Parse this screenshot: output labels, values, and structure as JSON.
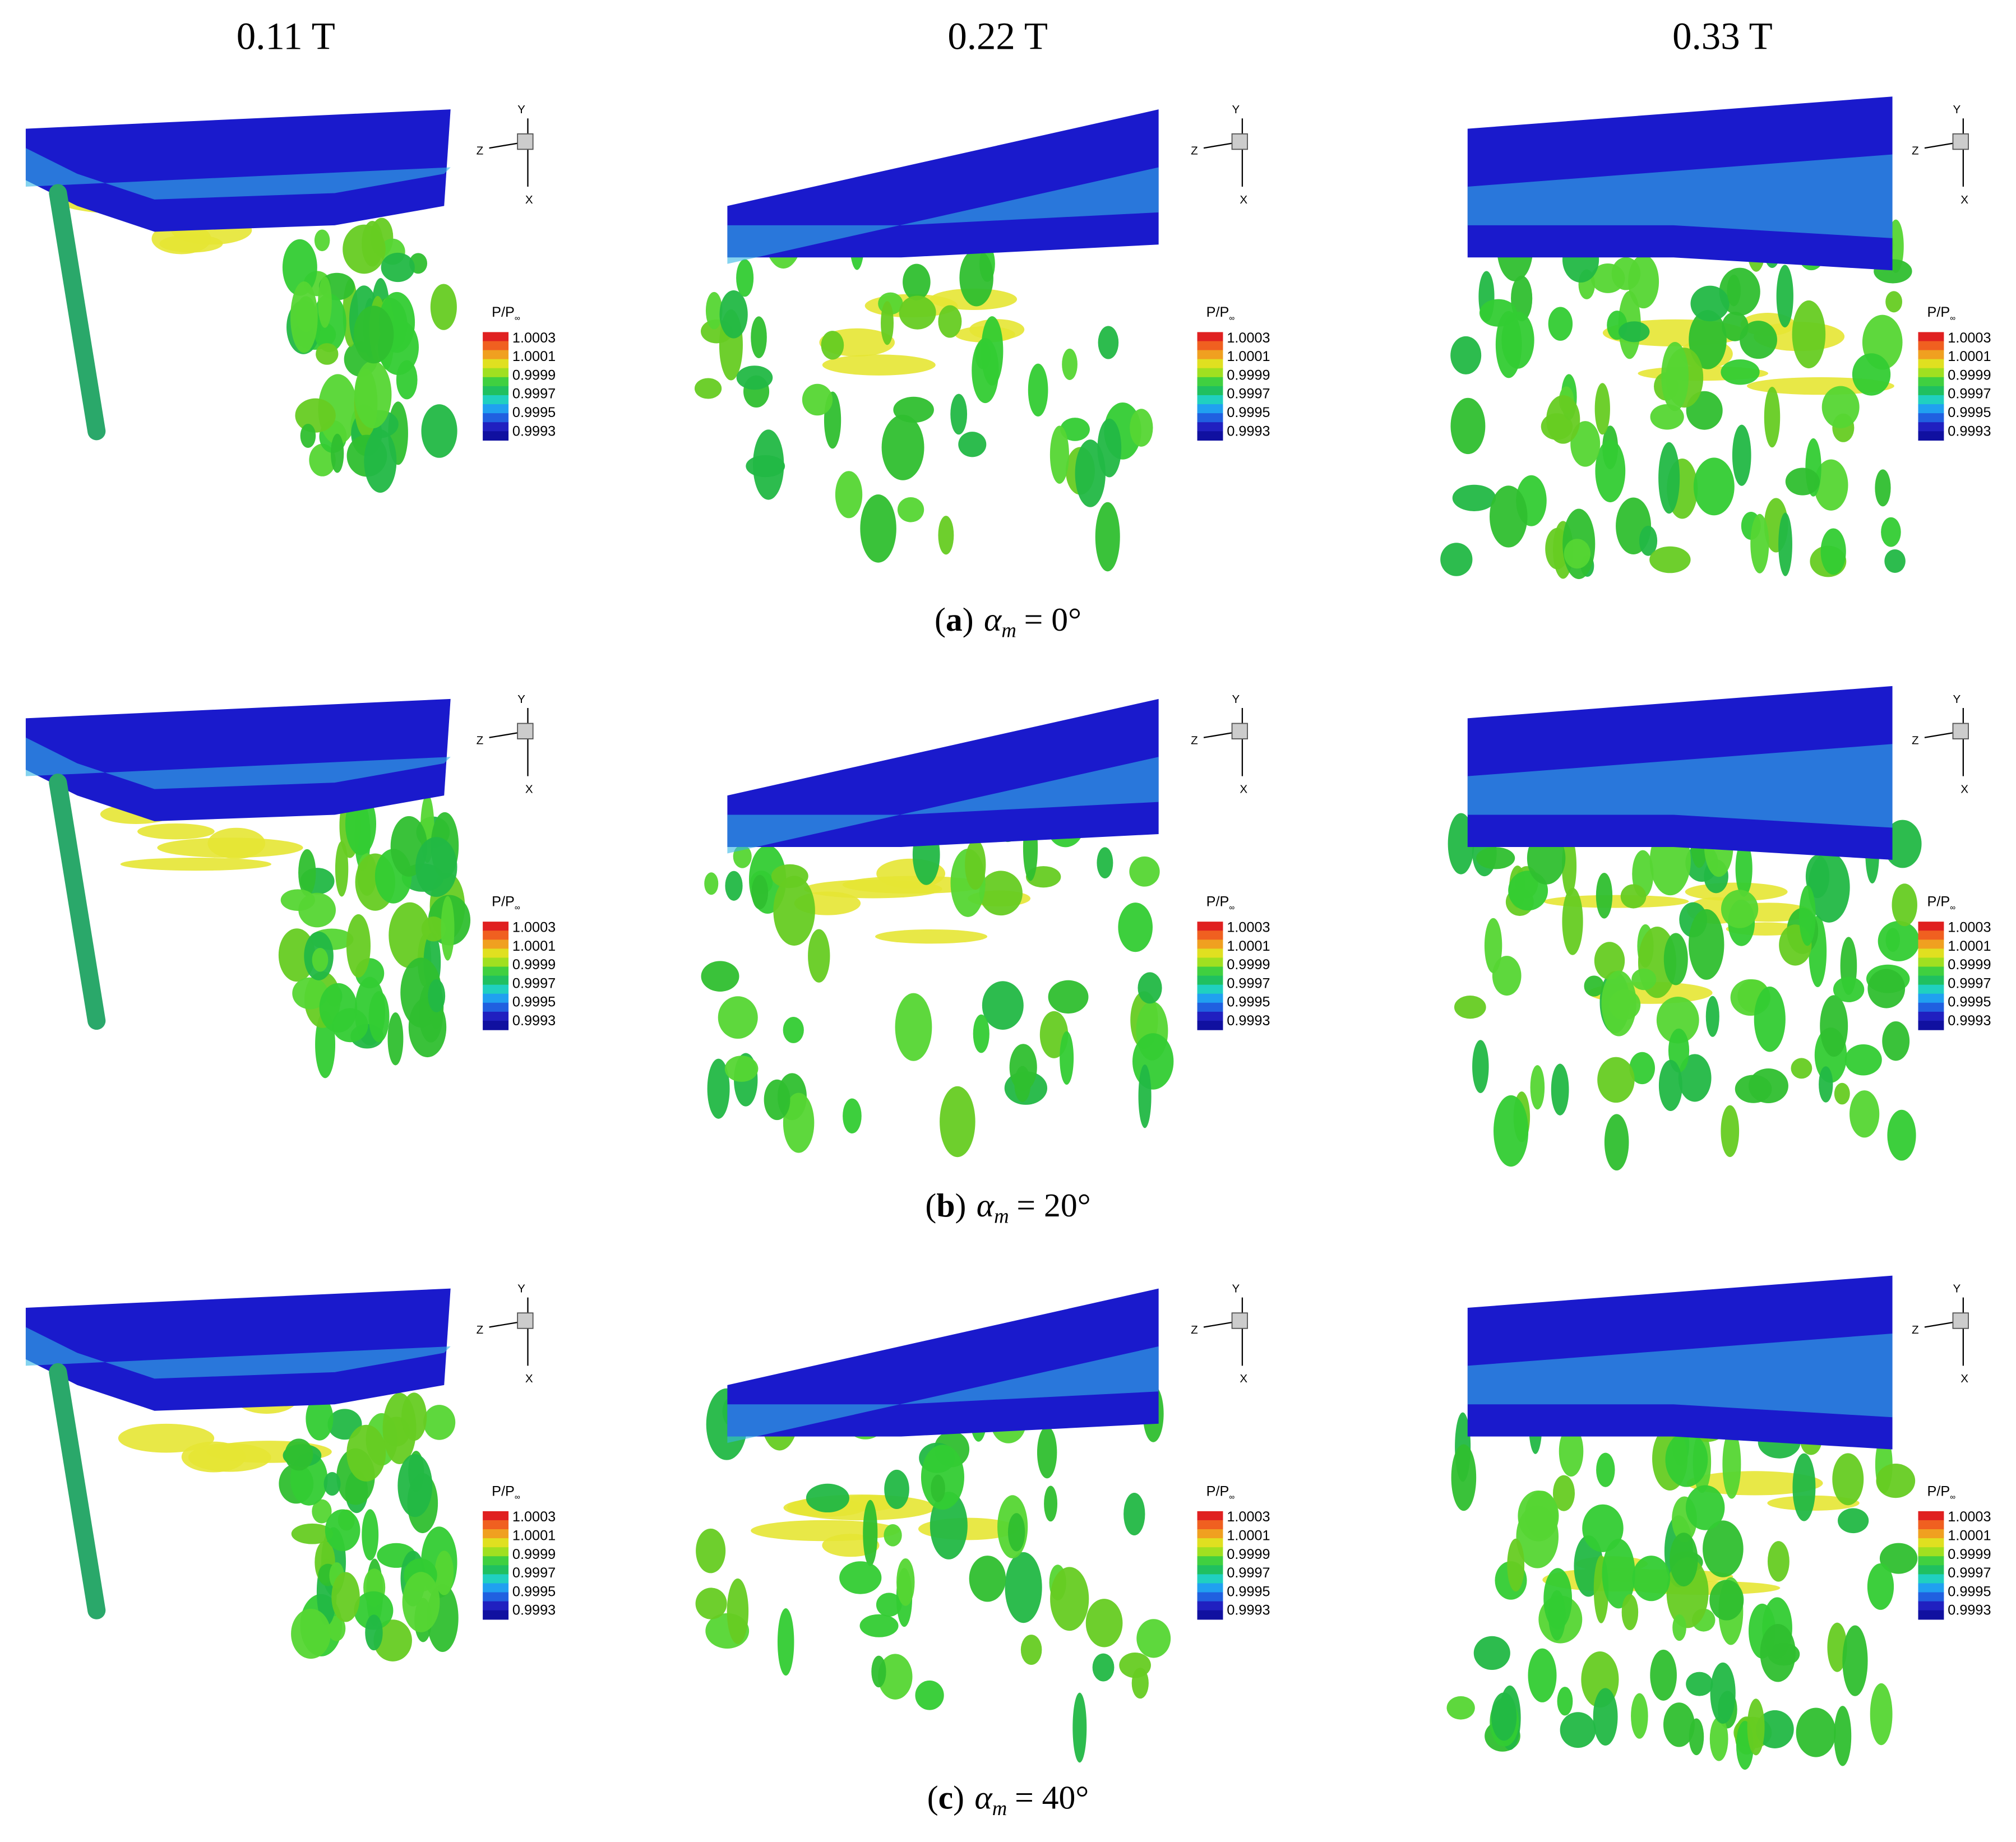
{
  "columns": [
    "0.11 T",
    "0.22 T",
    "0.33 T"
  ],
  "rows": [
    {
      "open": "(",
      "letter": "a",
      "close": ")",
      "symbol": "α",
      "subscript": "m",
      "value": "= 0°"
    },
    {
      "open": "(",
      "letter": "b",
      "close": ")",
      "symbol": "α",
      "subscript": "m",
      "value": "= 20°"
    },
    {
      "open": "(",
      "letter": "c",
      "close": ")",
      "symbol": "α",
      "subscript": "m",
      "value": "= 40°"
    }
  ],
  "legend": {
    "title": "P/P",
    "title_sub": "∞",
    "levels": [
      "1.0003",
      "1.0001",
      "0.9999",
      "0.9997",
      "0.9995",
      "0.9993"
    ]
  },
  "axes": {
    "y": "Y",
    "z": "Z",
    "x": "X"
  }
}
